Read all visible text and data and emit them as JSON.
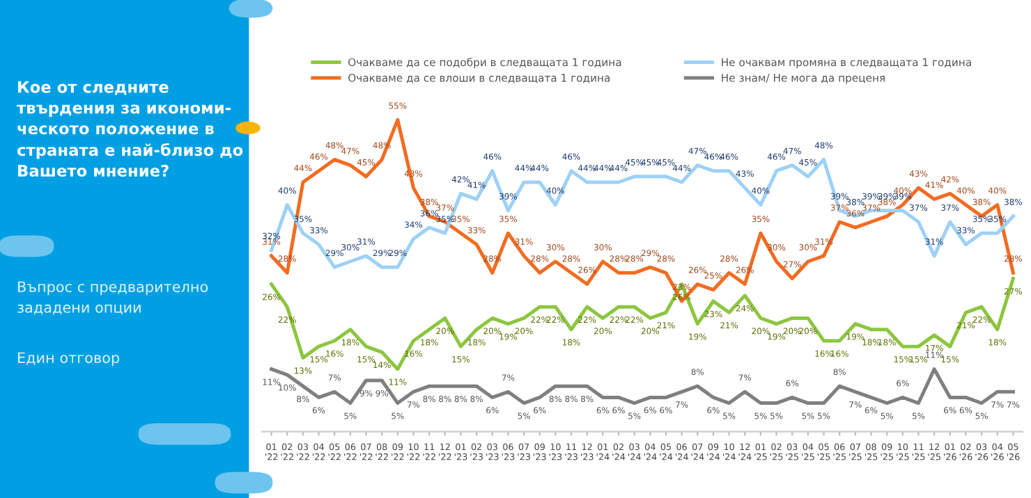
{
  "chart_data": {
    "type": "line",
    "title": "Кое от следните\nтвърдения за икономи-\nческото положение в\nстраната е най-близо до\nВашето мнение?",
    "subtitle": "Въпрос с предварително\nзададени опции",
    "annotations": [
      "Един отговор"
    ],
    "categories": [
      "01\n'22",
      "02\n'22",
      "03\n'22",
      "04\n'22",
      "05\n'22",
      "06\n'22",
      "07\n'22",
      "08\n'22",
      "09\n'22",
      "10\n'22",
      "11\n'22",
      "12\n'22",
      "01\n'23",
      "02\n'23",
      "03\n'23",
      "06\n'23",
      "07\n'23",
      "09\n'23",
      "10\n'23",
      "11\n'23",
      "12\n'23",
      "01\n'24",
      "02\n'24",
      "03\n'24",
      "04\n'24",
      "05\n'24",
      "06\n'24",
      "07\n'24",
      "09\n'24",
      "10\n'24",
      "12\n'24",
      "01\n'25",
      "02\n'25",
      "03\n'25",
      "04\n'25",
      "05\n'25",
      "06\n'25",
      "07\n'25",
      "08\n'25",
      "09\n'25",
      "10\n'25",
      "11\n'25",
      "12\n'25",
      "01\n'26",
      "02\n'26",
      "03\n'26",
      "04\n'26",
      "05\n'26"
    ],
    "series": [
      {
        "name": "Очакваме да се подобри в следващата 1 година",
        "color": "#8cc63f",
        "values": [
          26,
          22,
          13,
          15,
          16,
          18,
          15,
          14,
          11,
          16,
          18,
          20,
          15,
          18,
          20,
          19,
          20,
          22,
          22,
          18,
          22,
          20,
          22,
          22,
          20,
          21,
          26,
          19,
          23,
          21,
          24,
          20,
          19,
          20,
          20,
          16,
          16,
          19,
          18,
          18,
          15,
          15,
          17,
          15,
          21,
          22,
          18,
          27
        ],
        "value_labels": [
          "26%",
          "22%",
          "13%",
          "15%",
          "16%",
          "18%",
          "15%",
          "14%",
          "11%",
          "16%",
          "18%",
          "20%",
          "15%",
          "18%",
          "20%",
          "19%",
          "20%",
          "22%",
          "22%",
          "18%",
          "22%",
          "20%",
          "22%",
          "22%",
          "20%",
          "21%",
          "26%",
          "19%",
          "23%",
          "21%",
          "24%",
          "20%",
          "19%",
          "20%",
          "20%",
          "16%",
          "16%",
          "19%",
          "18%",
          "18%",
          "15%",
          "15%",
          "17%",
          "15%",
          "21%",
          "22%",
          "18%",
          "27%"
        ]
      },
      {
        "name": "Очакваме да се влоши в следващата 1 година",
        "color": "#f26c21",
        "values": [
          31,
          28,
          44,
          46,
          48,
          47,
          45,
          48,
          55,
          43,
          38,
          37,
          35,
          33,
          28,
          35,
          31,
          28,
          30,
          28,
          26,
          30,
          28,
          28,
          29,
          28,
          23,
          26,
          25,
          28,
          26,
          35,
          30,
          27,
          30,
          31,
          37,
          36,
          37,
          38,
          40,
          43,
          41,
          42,
          40,
          38,
          40,
          28
        ],
        "value_labels": [
          "31%",
          "28%",
          "44%",
          "46%",
          "48%",
          "47%",
          "45%",
          "48%",
          "55%",
          "43%",
          "38%",
          "37%",
          "35%",
          "33%",
          "28%",
          "35%",
          "31%",
          "28%",
          "30%",
          "28%",
          "26%",
          "30%",
          "28%",
          "28%",
          "29%",
          "28%",
          "23%",
          "26%",
          "25%",
          "28%",
          "26%",
          "35%",
          "30%",
          "27%",
          "30%",
          "31%",
          "37%",
          "36%",
          "37%",
          "38%",
          "40%",
          "43%",
          "41%",
          "42%",
          "40%",
          "38%",
          "40%",
          "28%"
        ]
      },
      {
        "name": "Не очаквам промяна в следващата 1 година",
        "color": "#9dd1f5",
        "values": [
          32,
          40,
          35,
          33,
          29,
          30,
          31,
          29,
          29,
          34,
          36,
          35,
          42,
          41,
          46,
          39,
          44,
          44,
          40,
          46,
          44,
          44,
          44,
          45,
          45,
          45,
          44,
          47,
          46,
          46,
          43,
          40,
          46,
          47,
          45,
          48,
          39,
          38,
          39,
          39,
          39,
          37,
          31,
          37,
          33,
          35,
          35,
          38
        ],
        "value_labels": [
          "32%",
          "40%",
          "35%",
          "33%",
          "29%",
          "30%",
          "31%",
          "29%",
          "29%",
          "34%",
          "36%",
          "35%",
          "42%",
          "41%",
          "46%",
          "39%",
          "44%",
          "44%",
          "40%",
          "46%",
          "44%",
          "44%",
          "44%",
          "45%",
          "45%",
          "45%",
          "44%",
          "47%",
          "46%",
          "46%",
          "43%",
          "40%",
          "46%",
          "47%",
          "45%",
          "48%",
          "39%",
          "38%",
          "39%",
          "39%",
          "39%",
          "37%",
          "31%",
          "37%",
          "33%",
          "35%",
          "35%",
          "38%"
        ]
      },
      {
        "name": "Не знам/ Не мога да преценя",
        "color": "#7f7f7f",
        "values": [
          11,
          10,
          8,
          6,
          7,
          5,
          9,
          9,
          5,
          7,
          8,
          8,
          8,
          8,
          6,
          7,
          5,
          6,
          8,
          8,
          8,
          6,
          6,
          5,
          6,
          6,
          7,
          8,
          6,
          5,
          7,
          5,
          5,
          6,
          5,
          5,
          8,
          7,
          6,
          5,
          6,
          5,
          11,
          6,
          6,
          5,
          7,
          7
        ],
        "value_labels": [
          "11%",
          "10%",
          "8%",
          "6%",
          "7%",
          "5%",
          "9%",
          "9%",
          "5%",
          "7%",
          "8%",
          "8%",
          "8%",
          "8%",
          "6%",
          "7%",
          "5%",
          "6%",
          "8%",
          "8%",
          "8%",
          "6%",
          "6%",
          "5%",
          "6%",
          "6%",
          "7%",
          "8%",
          "6%",
          "5%",
          "7%",
          "5%",
          "5%",
          "6%",
          "5%",
          "5%",
          "8%",
          "7%",
          "6%",
          "5%",
          "6%",
          "5%",
          "11%",
          "6%",
          "6%",
          "5%",
          "7%",
          "7%"
        ]
      }
    ],
    "legend": "top",
    "grid": false,
    "marker": "none",
    "line_style": "solid"
  }
}
